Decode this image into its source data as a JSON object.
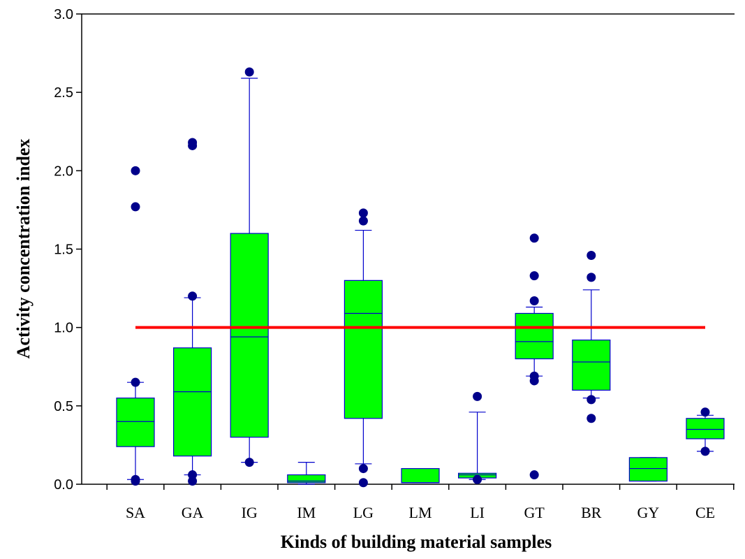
{
  "chart_data": {
    "type": "box",
    "xlabel": "Kinds of building material samples",
    "ylabel": "Activity concentration index",
    "ylim": [
      0,
      3.0
    ],
    "yticks": [
      "0.0",
      "0.5",
      "1.0",
      "1.5",
      "2.0",
      "2.5",
      "3.0"
    ],
    "categories": [
      "SA",
      "GA",
      "IG",
      "IM",
      "LG",
      "LM",
      "LI",
      "GT",
      "BR",
      "GY",
      "CE"
    ],
    "boxes": [
      {
        "category": "SA",
        "whisker_low": 0.03,
        "q1": 0.24,
        "median": 0.4,
        "q3": 0.55,
        "whisker_high": 0.65,
        "outliers": [
          0.02,
          0.03,
          0.65,
          1.77,
          2.0
        ]
      },
      {
        "category": "GA",
        "whisker_low": 0.06,
        "q1": 0.18,
        "median": 0.59,
        "q3": 0.87,
        "whisker_high": 1.19,
        "outliers": [
          0.02,
          0.06,
          1.2,
          2.16,
          2.18
        ]
      },
      {
        "category": "IG",
        "whisker_low": 0.14,
        "q1": 0.3,
        "median": 0.94,
        "q3": 1.6,
        "whisker_high": 2.59,
        "outliers": [
          0.14,
          2.63
        ]
      },
      {
        "category": "IM",
        "whisker_low": 0.0,
        "q1": 0.01,
        "median": 0.02,
        "q3": 0.06,
        "whisker_high": 0.14,
        "outliers": []
      },
      {
        "category": "LG",
        "whisker_low": 0.13,
        "q1": 0.42,
        "median": 1.09,
        "q3": 1.3,
        "whisker_high": 1.62,
        "outliers": [
          0.01,
          0.1,
          1.68,
          1.73
        ]
      },
      {
        "category": "LM",
        "whisker_low": 0.01,
        "q1": 0.01,
        "median": 0.01,
        "q3": 0.1,
        "whisker_high": 0.1,
        "outliers": []
      },
      {
        "category": "LI",
        "whisker_low": 0.03,
        "q1": 0.04,
        "median": 0.06,
        "q3": 0.07,
        "whisker_high": 0.46,
        "outliers": [
          0.03,
          0.56
        ]
      },
      {
        "category": "GT",
        "whisker_low": 0.69,
        "q1": 0.8,
        "median": 0.91,
        "q3": 1.09,
        "whisker_high": 1.13,
        "outliers": [
          0.06,
          0.66,
          0.69,
          1.17,
          1.33,
          1.57
        ]
      },
      {
        "category": "BR",
        "whisker_low": 0.55,
        "q1": 0.6,
        "median": 0.78,
        "q3": 0.92,
        "whisker_high": 1.24,
        "outliers": [
          0.42,
          0.54,
          1.32,
          1.46
        ]
      },
      {
        "category": "GY",
        "whisker_low": 0.02,
        "q1": 0.02,
        "median": 0.1,
        "q3": 0.17,
        "whisker_high": 0.17,
        "outliers": []
      },
      {
        "category": "CE",
        "whisker_low": 0.21,
        "q1": 0.29,
        "median": 0.35,
        "q3": 0.42,
        "whisker_high": 0.44,
        "outliers": [
          0.21,
          0.46
        ]
      }
    ],
    "reference_line": {
      "y": 1.0,
      "x_from": "SA",
      "x_to": "CE",
      "color": "#ff0000"
    },
    "colors": {
      "box_fill": "#00ff00",
      "box_stroke": "#0000cc",
      "outlier": "#00008b",
      "axis": "#000000"
    },
    "grid": false,
    "legend": "none"
  }
}
